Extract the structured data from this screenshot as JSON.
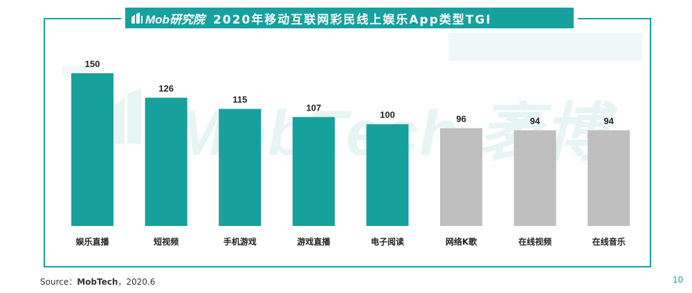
{
  "header": {
    "logo_text": "Mob研究院",
    "title": "2020年移动互联网彩民线上娱乐App类型TGI"
  },
  "watermark": "MobTech 袤博",
  "footer": {
    "source_label": "Source：",
    "source_name": "MobTech",
    "source_date": "，2020.6",
    "page_number": "10"
  },
  "colors": {
    "accent": "#16a19d",
    "bar_highlight": "#16a19d",
    "bar_other": "#bfbfbf"
  },
  "chart_data": {
    "type": "bar",
    "title": "2020年移动互联网彩民线上娱乐App类型TGI",
    "categories": [
      "娱乐直播",
      "短视频",
      "手机游戏",
      "游戏直播",
      "电子阅读",
      "网络K歌",
      "在线视频",
      "在线音乐"
    ],
    "values": [
      150,
      126,
      115,
      107,
      100,
      96,
      94,
      94
    ],
    "data_labels": [
      "150",
      "126",
      "115",
      "107",
      "100",
      "96",
      "94",
      "94"
    ],
    "highlighted_count": 5,
    "ylim": [
      0,
      160
    ],
    "grid": false,
    "legend": "none"
  }
}
